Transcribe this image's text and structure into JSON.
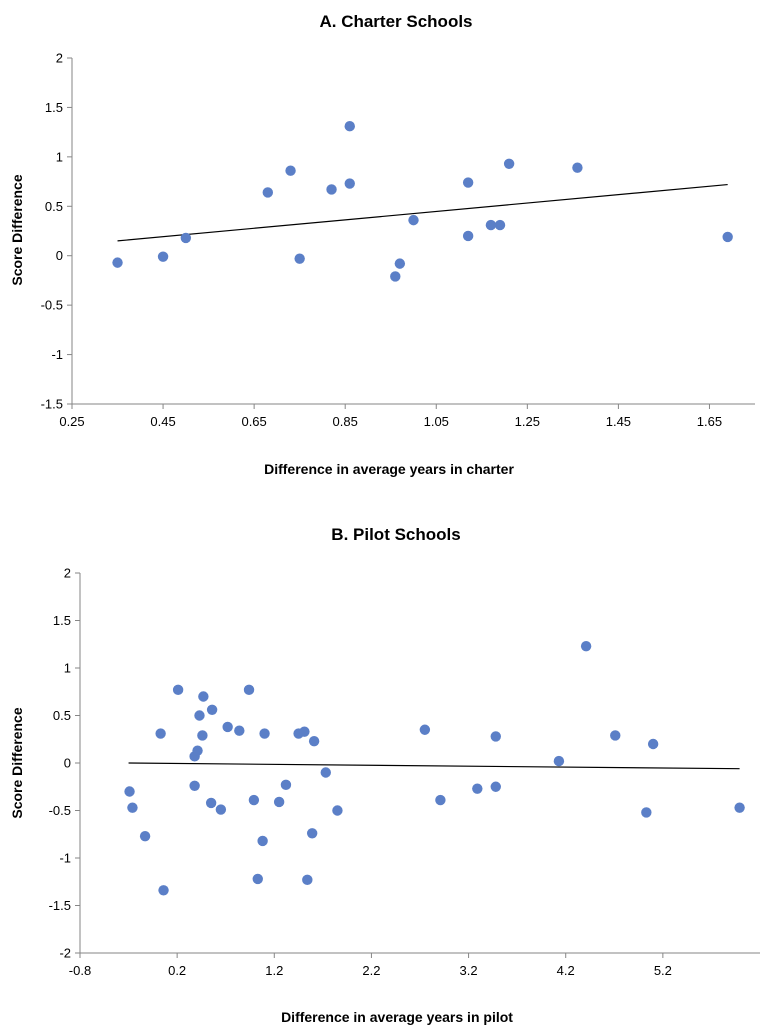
{
  "chart_data": [
    {
      "type": "scatter",
      "title": "A. Charter Schools",
      "xlabel": "Difference in average years in charter",
      "ylabel": "Score Difference",
      "xlim": [
        0.25,
        1.75
      ],
      "ylim": [
        -1.5,
        2
      ],
      "xticks": [
        0.25,
        0.45,
        0.65,
        0.85,
        1.05,
        1.25,
        1.45,
        1.65
      ],
      "xtick_labels": [
        "0.25",
        "0.45",
        "0.65",
        "0.85",
        "1.05",
        "1.25",
        "1.45",
        "1.65"
      ],
      "yticks": [
        -1.5,
        -1,
        -0.5,
        0,
        0.5,
        1,
        1.5,
        2
      ],
      "ytick_labels": [
        "-1.5",
        "-1",
        "-0.5",
        "0",
        "0.5",
        "1",
        "1.5",
        "2"
      ],
      "grid": false,
      "legend": "none",
      "points": [
        {
          "x": 0.35,
          "y": -0.07
        },
        {
          "x": 0.45,
          "y": -0.01
        },
        {
          "x": 0.5,
          "y": 0.18
        },
        {
          "x": 0.68,
          "y": 0.64
        },
        {
          "x": 0.73,
          "y": 0.86
        },
        {
          "x": 0.75,
          "y": -0.03
        },
        {
          "x": 0.82,
          "y": 0.67
        },
        {
          "x": 0.86,
          "y": 0.73
        },
        {
          "x": 0.86,
          "y": 1.31
        },
        {
          "x": 0.96,
          "y": -0.21
        },
        {
          "x": 0.97,
          "y": -0.08
        },
        {
          "x": 1.0,
          "y": 0.36
        },
        {
          "x": 1.12,
          "y": 0.74
        },
        {
          "x": 1.12,
          "y": 0.2
        },
        {
          "x": 1.17,
          "y": 0.31
        },
        {
          "x": 1.19,
          "y": 0.31
        },
        {
          "x": 1.21,
          "y": 0.93
        },
        {
          "x": 1.36,
          "y": 0.89
        },
        {
          "x": 1.69,
          "y": 0.19
        }
      ],
      "trendline": {
        "x": [
          0.35,
          1.69
        ],
        "y": [
          0.15,
          0.72
        ]
      }
    },
    {
      "type": "scatter",
      "title": "B. Pilot Schools",
      "xlabel": "Difference in average years in pilot",
      "ylabel": "Score Difference",
      "xlim": [
        -0.8,
        6.2
      ],
      "ylim": [
        -2,
        2
      ],
      "xticks": [
        -0.8,
        0.2,
        1.2,
        2.2,
        3.2,
        4.2,
        5.2
      ],
      "xtick_labels": [
        "-0.8",
        "0.2",
        "1.2",
        "2.2",
        "3.2",
        "4.2",
        "5.2"
      ],
      "yticks": [
        -2,
        -1.5,
        -1,
        -0.5,
        0,
        0.5,
        1,
        1.5,
        2
      ],
      "ytick_labels": [
        "-2",
        "-1.5",
        "-1",
        "-0.5",
        "0",
        "0.5",
        "1",
        "1.5",
        "2"
      ],
      "grid": false,
      "legend": "none",
      "points": [
        {
          "x": -0.29,
          "y": -0.3
        },
        {
          "x": -0.26,
          "y": -0.47
        },
        {
          "x": -0.13,
          "y": -0.77
        },
        {
          "x": 0.03,
          "y": 0.31
        },
        {
          "x": 0.06,
          "y": -1.34
        },
        {
          "x": 0.21,
          "y": 0.77
        },
        {
          "x": 0.38,
          "y": 0.07
        },
        {
          "x": 0.38,
          "y": -0.24
        },
        {
          "x": 0.41,
          "y": 0.13
        },
        {
          "x": 0.43,
          "y": 0.5
        },
        {
          "x": 0.46,
          "y": 0.29
        },
        {
          "x": 0.47,
          "y": 0.7
        },
        {
          "x": 0.55,
          "y": -0.42
        },
        {
          "x": 0.56,
          "y": 0.56
        },
        {
          "x": 0.65,
          "y": -0.49
        },
        {
          "x": 0.72,
          "y": 0.38
        },
        {
          "x": 0.84,
          "y": 0.34
        },
        {
          "x": 0.94,
          "y": 0.77
        },
        {
          "x": 0.99,
          "y": -0.39
        },
        {
          "x": 1.03,
          "y": -1.22
        },
        {
          "x": 1.08,
          "y": -0.82
        },
        {
          "x": 1.1,
          "y": 0.31
        },
        {
          "x": 1.25,
          "y": -0.41
        },
        {
          "x": 1.32,
          "y": -0.23
        },
        {
          "x": 1.45,
          "y": 0.31
        },
        {
          "x": 1.51,
          "y": 0.33
        },
        {
          "x": 1.54,
          "y": -1.23
        },
        {
          "x": 1.59,
          "y": -0.74
        },
        {
          "x": 1.61,
          "y": 0.23
        },
        {
          "x": 1.73,
          "y": -0.1
        },
        {
          "x": 1.85,
          "y": -0.5
        },
        {
          "x": 2.75,
          "y": 0.35
        },
        {
          "x": 2.91,
          "y": -0.39
        },
        {
          "x": 3.29,
          "y": -0.27
        },
        {
          "x": 3.48,
          "y": 0.28
        },
        {
          "x": 3.48,
          "y": -0.25
        },
        {
          "x": 4.13,
          "y": 0.02
        },
        {
          "x": 4.41,
          "y": 1.23
        },
        {
          "x": 4.71,
          "y": 0.29
        },
        {
          "x": 5.03,
          "y": -0.52
        },
        {
          "x": 5.1,
          "y": 0.2
        },
        {
          "x": 5.99,
          "y": -0.47
        }
      ],
      "trendline": {
        "x": [
          -0.3,
          5.99
        ],
        "y": [
          0.0,
          -0.06
        ]
      }
    }
  ]
}
